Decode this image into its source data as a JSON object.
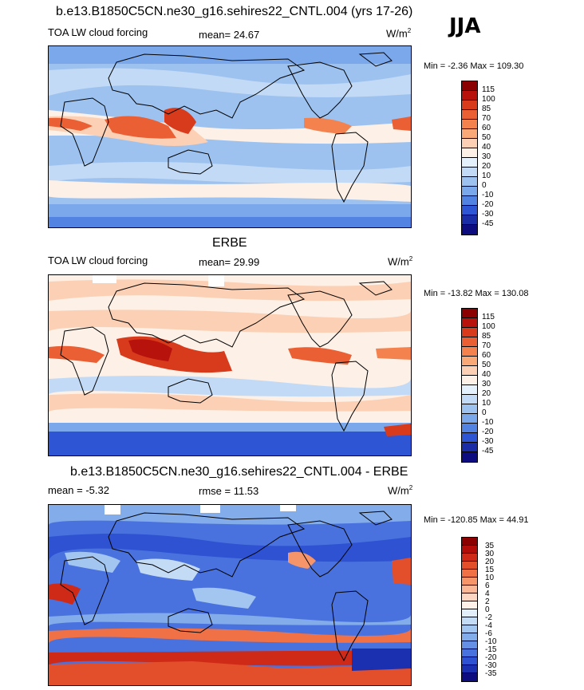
{
  "season": "JJA",
  "panels": [
    {
      "title": "b.e13.B1850C5CN.ne30_g16.sehires22_CNTL.004 (yrs 17-26)",
      "left": "TOA LW cloud forcing",
      "center": "mean=  24.67",
      "units": "W/m",
      "units_sup": "2",
      "minmax": "Min =  -2.36 Max = 109.30",
      "levels": [
        "115",
        "100",
        "85",
        "70",
        "60",
        "50",
        "40",
        "30",
        "20",
        "10",
        "0",
        "-10",
        "-20",
        "-30",
        "-45"
      ],
      "colors": [
        "#8b0000",
        "#b8120c",
        "#d83a1c",
        "#ea5f33",
        "#f4824f",
        "#f9a877",
        "#fcd0b4",
        "#fdf0e6",
        "#e4f0fb",
        "#c2daf5",
        "#9dc2ef",
        "#7aa8ea",
        "#5383e2",
        "#2d55d4",
        "#1a2ca6",
        "#0d0d80"
      ]
    },
    {
      "title": "ERBE",
      "left": "TOA LW cloud forcing",
      "center": "mean=  29.99",
      "units": "W/m",
      "units_sup": "2",
      "minmax": "Min = -13.82 Max = 130.08",
      "levels": [
        "115",
        "100",
        "85",
        "70",
        "60",
        "50",
        "40",
        "30",
        "20",
        "10",
        "0",
        "-10",
        "-20",
        "-30",
        "-45"
      ],
      "colors": [
        "#8b0000",
        "#b8120c",
        "#d83a1c",
        "#ea5f33",
        "#f4824f",
        "#f9a877",
        "#fcd0b4",
        "#fdf0e6",
        "#e4f0fb",
        "#c2daf5",
        "#9dc2ef",
        "#7aa8ea",
        "#5383e2",
        "#2d55d4",
        "#1a2ca6",
        "#0d0d80"
      ]
    },
    {
      "title": "b.e13.B1850C5CN.ne30_g16.sehires22_CNTL.004 - ERBE",
      "left": "mean =  -5.32",
      "center": "rmse =  11.53",
      "units": "W/m",
      "units_sup": "2",
      "minmax": "Min = -120.85 Max =  44.91",
      "levels": [
        "35",
        "30",
        "20",
        "15",
        "10",
        "6",
        "4",
        "2",
        "0",
        "-2",
        "-4",
        "-6",
        "-10",
        "-15",
        "-20",
        "-30",
        "-35"
      ],
      "colors": [
        "#8b0000",
        "#b30d0a",
        "#cf2a17",
        "#e34f2b",
        "#ef7145",
        "#f6946a",
        "#fab797",
        "#fcd6c2",
        "#fdf1e9",
        "#e2eefa",
        "#c4dbf5",
        "#a3c6f0",
        "#83acea",
        "#6690e5",
        "#4a72de",
        "#2e52d2",
        "#1b30b0",
        "#0d0d80"
      ]
    }
  ]
}
